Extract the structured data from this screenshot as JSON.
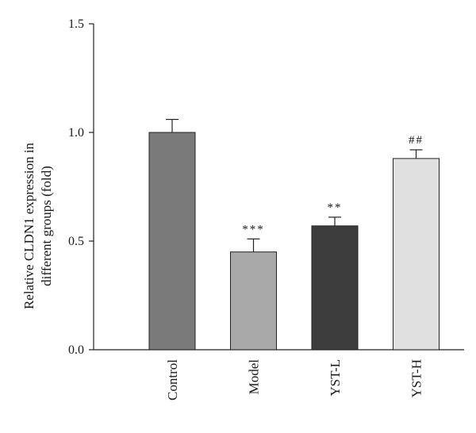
{
  "chart_data": {
    "type": "bar",
    "categories": [
      "Control",
      "Model",
      "YST-L",
      "YST-H"
    ],
    "values": [
      1.0,
      0.45,
      0.57,
      0.88
    ],
    "errors": [
      0.06,
      0.06,
      0.04,
      0.04
    ],
    "significance": [
      "",
      "***",
      "**",
      "##"
    ],
    "colors": [
      "#7a7a7a",
      "#a9a9a9",
      "#3d3d3d",
      "#e0e0e0"
    ],
    "ylabel_lines": [
      "Relative CLDN1 expression in",
      "different groups (fold)"
    ],
    "ylim": [
      0,
      1.5
    ],
    "yticks": [
      "0.0",
      "0.5",
      "1.0",
      "1.5"
    ],
    "grid": false
  }
}
